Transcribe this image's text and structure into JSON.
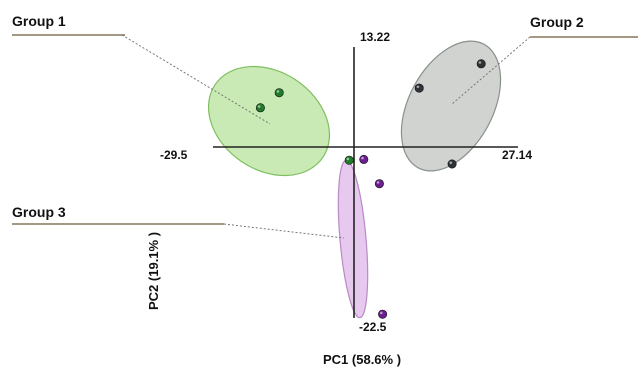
{
  "chart_data": {
    "type": "scatter",
    "title": "",
    "xlabel": "PC1 (58.6% )",
    "ylabel": "PC2 (19.1% )",
    "xlim": [
      -29.5,
      27.14
    ],
    "ylim": [
      -22.5,
      13.22
    ],
    "axis_end_labels": {
      "x_min": "-29.5",
      "x_max": "27.14",
      "y_max": "13.22",
      "y_min": "-22.5"
    },
    "grid": false,
    "series": [
      {
        "name": "Group 1",
        "color": "#1f7a2a",
        "ellipse_fill": "#bfe6a8",
        "ellipse_stroke": "#7fbf60",
        "points": [
          [
            -17.2,
            7.2
          ],
          [
            -20.7,
            5.2
          ],
          [
            -4.2,
            -1.7
          ]
        ]
      },
      {
        "name": "Group 2",
        "color": "#2e3436",
        "ellipse_fill": "#c8cbc8",
        "ellipse_stroke": "#8a918a",
        "points": [
          [
            20.3,
            11.0
          ],
          [
            8.8,
            7.8
          ],
          [
            14.9,
            -2.2
          ]
        ]
      },
      {
        "name": "Group 3",
        "color": "#6b1f8f",
        "ellipse_fill": "#e3bfec",
        "ellipse_stroke": "#b98ac4",
        "points": [
          [
            -1.5,
            -1.6
          ],
          [
            1.4,
            -4.8
          ],
          [
            2.0,
            -22.0
          ]
        ]
      }
    ]
  }
}
